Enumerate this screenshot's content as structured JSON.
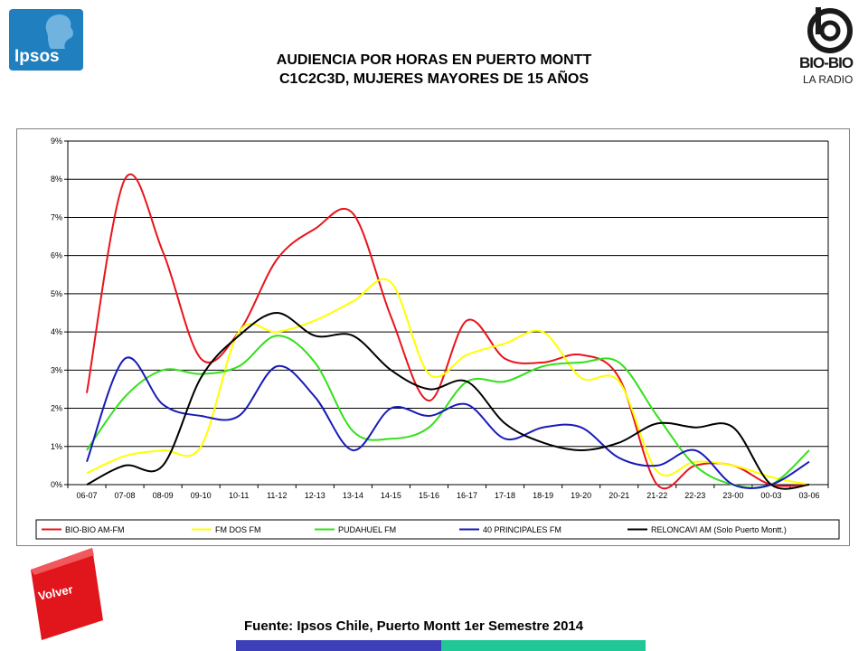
{
  "logos": {
    "ipsos": "Ipsos",
    "biobio_name": "BIO-BIO",
    "biobio_sub": "LA RADIO"
  },
  "title_line1": "AUDIENCIA POR HORAS EN PUERTO MONTT",
  "title_line2": "C1C2C3D, MUJERES MAYORES DE 15 AÑOS",
  "volver": "Volver",
  "source": "Fuente: Ipsos Chile, Puerto Montt 1er Semestre 2014",
  "colors": {
    "volver_red": "#e0161c",
    "bar_blue": "#3d3fb8",
    "bar_green": "#1fc896"
  },
  "chart_data": {
    "type": "line",
    "title": "",
    "xlabel": "",
    "ylabel": "",
    "ylim": [
      0,
      9
    ],
    "yticks": [
      "0%",
      "1%",
      "2%",
      "3%",
      "4%",
      "5%",
      "6%",
      "7%",
      "8%",
      "9%"
    ],
    "grid": true,
    "legend_position": "bottom",
    "categories": [
      "06-07",
      "07-08",
      "08-09",
      "09-10",
      "10-11",
      "11-12",
      "12-13",
      "13-14",
      "14-15",
      "15-16",
      "16-17",
      "17-18",
      "18-19",
      "19-20",
      "20-21",
      "21-22",
      "22-23",
      "23-00",
      "00-03",
      "03-06"
    ],
    "series": [
      {
        "name": "BIO-BIO AM-FM",
        "color": "#e8141c",
        "values": [
          2.4,
          8.0,
          6.1,
          3.3,
          4.0,
          5.9,
          6.7,
          7.1,
          4.4,
          2.2,
          4.3,
          3.3,
          3.2,
          3.4,
          2.8,
          0.0,
          0.5,
          0.5,
          0.0,
          0.0
        ]
      },
      {
        "name": "FM DOS FM",
        "color": "#ffff00",
        "values": [
          0.3,
          0.75,
          0.9,
          1.0,
          4.0,
          4.0,
          4.3,
          4.8,
          5.3,
          2.9,
          3.4,
          3.7,
          4.0,
          2.8,
          2.7,
          0.35,
          0.6,
          0.5,
          0.2,
          0.0
        ]
      },
      {
        "name": "PUDAHUEL FM",
        "color": "#33e01a",
        "values": [
          0.9,
          2.3,
          3.0,
          2.9,
          3.1,
          3.9,
          3.2,
          1.4,
          1.2,
          1.5,
          2.7,
          2.7,
          3.1,
          3.2,
          3.2,
          1.8,
          0.5,
          0.0,
          0.0,
          0.9
        ]
      },
      {
        "name": "40 PRINCIPALES FM",
        "color": "#1a1ab8",
        "values": [
          0.6,
          3.3,
          2.1,
          1.8,
          1.8,
          3.1,
          2.3,
          0.9,
          2.0,
          1.8,
          2.1,
          1.2,
          1.5,
          1.5,
          0.7,
          0.5,
          0.9,
          0.0,
          0.0,
          0.6
        ]
      },
      {
        "name": "RELONCAVI AM (Solo Puerto Montt.)",
        "color": "#000000",
        "values": [
          0.0,
          0.5,
          0.5,
          2.8,
          3.9,
          4.5,
          3.9,
          3.9,
          3.0,
          2.5,
          2.7,
          1.6,
          1.1,
          0.9,
          1.1,
          1.6,
          1.5,
          1.5,
          0.0,
          0.0
        ]
      }
    ]
  }
}
